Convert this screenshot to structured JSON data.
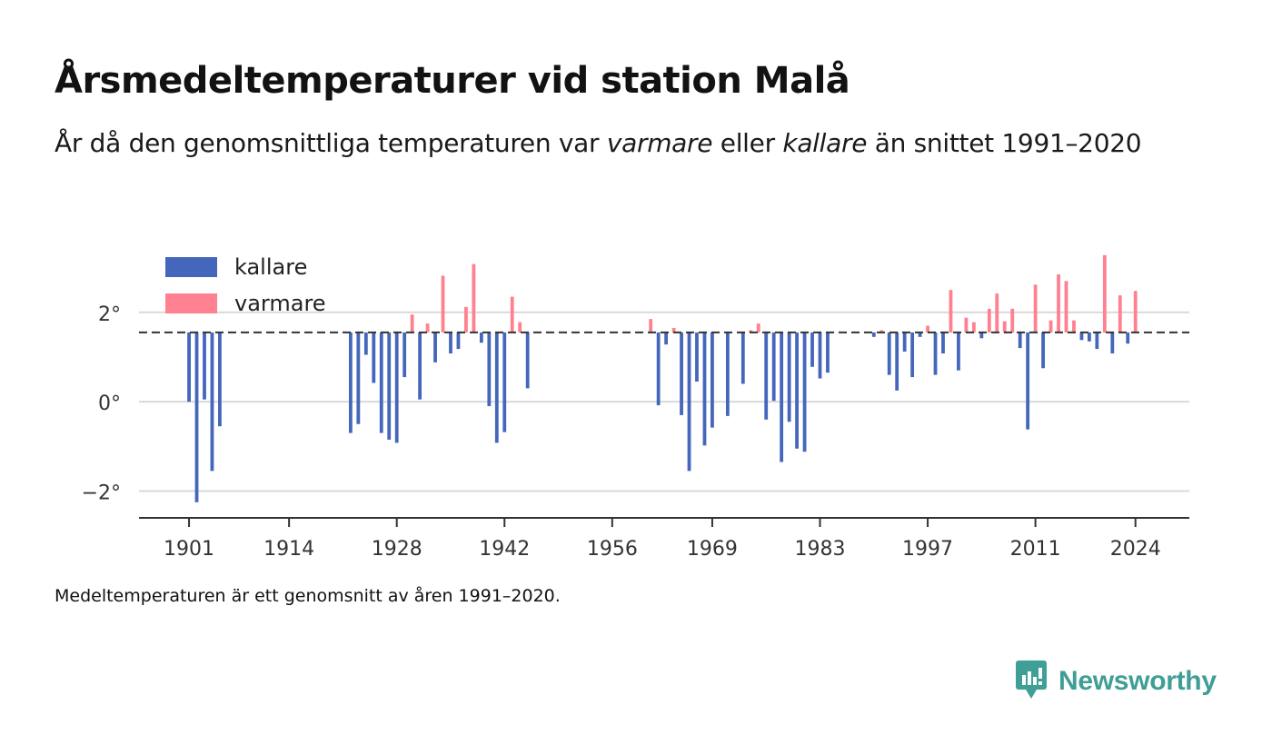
{
  "header": {
    "title": "Årsmedeltemperaturer vid station Malå",
    "subtitle_prefix": "År då den genomsnittliga temperaturen var ",
    "subtitle_warm": "varmare",
    "subtitle_mid": " eller ",
    "subtitle_cold": "kallare",
    "subtitle_suffix": " än snittet 1991–2020"
  },
  "footnote": "Medeltemperaturen är ett genomsnitt av åren 1991–2020.",
  "brand": {
    "name": "Newsworthy",
    "color": "#3f9e96",
    "icon": "newsworthy-logo-icon"
  },
  "chart_data": {
    "type": "bar",
    "baseline": 1.55,
    "ylim": [
      -2.6,
      3.5
    ],
    "xlim": [
      1894.5,
      2031
    ],
    "yticks": [
      -2,
      0,
      2
    ],
    "ytick_labels": [
      "−2°",
      "0°",
      "2°"
    ],
    "xticks": [
      1901,
      1914,
      1928,
      1942,
      1956,
      1969,
      1983,
      1997,
      2011,
      2024
    ],
    "xtick_labels": [
      "1901",
      "1914",
      "1928",
      "1942",
      "1956",
      "1969",
      "1983",
      "1997",
      "2011",
      "2024"
    ],
    "grid": true,
    "legend_position": "top-left",
    "series": [
      {
        "name": "kallare",
        "color": "#4466bb"
      },
      {
        "name": "varmare",
        "color": "#ff8090"
      }
    ],
    "data": [
      {
        "x": 1901,
        "y": 0.0
      },
      {
        "x": 1902,
        "y": -2.25
      },
      {
        "x": 1903,
        "y": 0.05
      },
      {
        "x": 1904,
        "y": -1.55
      },
      {
        "x": 1905,
        "y": -0.55
      },
      {
        "x": 1922,
        "y": -0.7
      },
      {
        "x": 1923,
        "y": -0.5
      },
      {
        "x": 1924,
        "y": 1.05
      },
      {
        "x": 1925,
        "y": 0.42
      },
      {
        "x": 1926,
        "y": -0.7
      },
      {
        "x": 1927,
        "y": -0.85
      },
      {
        "x": 1928,
        "y": -0.92
      },
      {
        "x": 1929,
        "y": 0.55
      },
      {
        "x": 1930,
        "y": 1.95
      },
      {
        "x": 1931,
        "y": 0.05
      },
      {
        "x": 1932,
        "y": 1.75
      },
      {
        "x": 1933,
        "y": 0.88
      },
      {
        "x": 1934,
        "y": 2.82
      },
      {
        "x": 1935,
        "y": 1.08
      },
      {
        "x": 1936,
        "y": 1.18
      },
      {
        "x": 1937,
        "y": 2.12
      },
      {
        "x": 1938,
        "y": 3.08
      },
      {
        "x": 1939,
        "y": 1.32
      },
      {
        "x": 1940,
        "y": -0.1
      },
      {
        "x": 1941,
        "y": -0.92
      },
      {
        "x": 1942,
        "y": -0.68
      },
      {
        "x": 1943,
        "y": 2.35
      },
      {
        "x": 1944,
        "y": 1.78
      },
      {
        "x": 1945,
        "y": 0.3
      },
      {
        "x": 1961,
        "y": 1.85
      },
      {
        "x": 1962,
        "y": -0.08
      },
      {
        "x": 1963,
        "y": 1.28
      },
      {
        "x": 1964,
        "y": 1.65
      },
      {
        "x": 1965,
        "y": -0.3
      },
      {
        "x": 1966,
        "y": -1.55
      },
      {
        "x": 1967,
        "y": 0.45
      },
      {
        "x": 1968,
        "y": -0.98
      },
      {
        "x": 1969,
        "y": -0.58
      },
      {
        "x": 1971,
        "y": -0.32
      },
      {
        "x": 1973,
        "y": 0.4
      },
      {
        "x": 1974,
        "y": 1.6
      },
      {
        "x": 1975,
        "y": 1.75
      },
      {
        "x": 1976,
        "y": -0.4
      },
      {
        "x": 1977,
        "y": 0.02
      },
      {
        "x": 1978,
        "y": -1.35
      },
      {
        "x": 1979,
        "y": -0.45
      },
      {
        "x": 1980,
        "y": -1.05
      },
      {
        "x": 1981,
        "y": -1.12
      },
      {
        "x": 1982,
        "y": 0.78
      },
      {
        "x": 1983,
        "y": 0.52
      },
      {
        "x": 1984,
        "y": 0.65
      },
      {
        "x": 1990,
        "y": 1.45
      },
      {
        "x": 1991,
        "y": 1.6
      },
      {
        "x": 1992,
        "y": 0.6
      },
      {
        "x": 1993,
        "y": 0.25
      },
      {
        "x": 1994,
        "y": 1.12
      },
      {
        "x": 1995,
        "y": 0.55
      },
      {
        "x": 1996,
        "y": 1.45
      },
      {
        "x": 1997,
        "y": 1.7
      },
      {
        "x": 1998,
        "y": 0.6
      },
      {
        "x": 1999,
        "y": 1.08
      },
      {
        "x": 2000,
        "y": 2.5
      },
      {
        "x": 2001,
        "y": 0.7
      },
      {
        "x": 2002,
        "y": 1.88
      },
      {
        "x": 2003,
        "y": 1.78
      },
      {
        "x": 2004,
        "y": 1.42
      },
      {
        "x": 2005,
        "y": 2.08
      },
      {
        "x": 2006,
        "y": 2.42
      },
      {
        "x": 2007,
        "y": 1.8
      },
      {
        "x": 2008,
        "y": 2.08
      },
      {
        "x": 2009,
        "y": 1.2
      },
      {
        "x": 2010,
        "y": -0.62
      },
      {
        "x": 2011,
        "y": 2.62
      },
      {
        "x": 2012,
        "y": 0.75
      },
      {
        "x": 2013,
        "y": 1.82
      },
      {
        "x": 2014,
        "y": 2.85
      },
      {
        "x": 2015,
        "y": 2.7
      },
      {
        "x": 2016,
        "y": 1.82
      },
      {
        "x": 2017,
        "y": 1.38
      },
      {
        "x": 2018,
        "y": 1.35
      },
      {
        "x": 2019,
        "y": 1.18
      },
      {
        "x": 2020,
        "y": 3.28
      },
      {
        "x": 2021,
        "y": 1.08
      },
      {
        "x": 2022,
        "y": 2.38
      },
      {
        "x": 2023,
        "y": 1.3
      },
      {
        "x": 2024,
        "y": 2.48
      }
    ]
  }
}
